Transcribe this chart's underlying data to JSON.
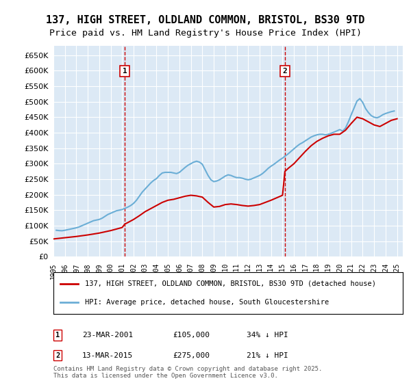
{
  "title": "137, HIGH STREET, OLDLAND COMMON, BRISTOL, BS30 9TD",
  "subtitle": "Price paid vs. HM Land Registry's House Price Index (HPI)",
  "title_fontsize": 11,
  "subtitle_fontsize": 9.5,
  "background_color": "#dce9f5",
  "plot_bg_color": "#dce9f5",
  "fig_bg_color": "#ffffff",
  "ylim": [
    0,
    680000
  ],
  "yticks": [
    0,
    50000,
    100000,
    150000,
    200000,
    250000,
    300000,
    350000,
    400000,
    450000,
    500000,
    550000,
    600000,
    650000
  ],
  "ytick_labels": [
    "£0",
    "£50K",
    "£100K",
    "£150K",
    "£200K",
    "£250K",
    "£300K",
    "£350K",
    "£400K",
    "£450K",
    "£500K",
    "£550K",
    "£600K",
    "£650K"
  ],
  "xlabel_years": [
    "1995",
    "1996",
    "1997",
    "1998",
    "1999",
    "2000",
    "2001",
    "2002",
    "2003",
    "2004",
    "2005",
    "2006",
    "2007",
    "2008",
    "2009",
    "2010",
    "2011",
    "2012",
    "2013",
    "2014",
    "2015",
    "2016",
    "2017",
    "2018",
    "2019",
    "2020",
    "2021",
    "2022",
    "2023",
    "2024",
    "2025"
  ],
  "vline1_x": "2001-03-23",
  "vline2_x": "2015-03-13",
  "vline_color": "#cc0000",
  "marker1_label": "1",
  "marker2_label": "2",
  "sale1_date": "23-MAR-2001",
  "sale1_price": "£105,000",
  "sale1_note": "34% ↓ HPI",
  "sale2_date": "13-MAR-2015",
  "sale2_price": "£275,000",
  "sale2_note": "21% ↓ HPI",
  "legend_line1": "137, HIGH STREET, OLDLAND COMMON, BRISTOL, BS30 9TD (detached house)",
  "legend_line2": "HPI: Average price, detached house, South Gloucestershire",
  "line1_color": "#cc0000",
  "line2_color": "#6baed6",
  "footer": "Contains HM Land Registry data © Crown copyright and database right 2025.\nThis data is licensed under the Open Government Licence v3.0.",
  "hpi_data": {
    "years": [
      1995.25,
      1995.5,
      1995.75,
      1996.0,
      1996.25,
      1996.5,
      1996.75,
      1997.0,
      1997.25,
      1997.5,
      1997.75,
      1998.0,
      1998.25,
      1998.5,
      1998.75,
      1999.0,
      1999.25,
      1999.5,
      1999.75,
      2000.0,
      2000.25,
      2000.5,
      2000.75,
      2001.0,
      2001.25,
      2001.5,
      2001.75,
      2002.0,
      2002.25,
      2002.5,
      2002.75,
      2003.0,
      2003.25,
      2003.5,
      2003.75,
      2004.0,
      2004.25,
      2004.5,
      2004.75,
      2005.0,
      2005.25,
      2005.5,
      2005.75,
      2006.0,
      2006.25,
      2006.5,
      2006.75,
      2007.0,
      2007.25,
      2007.5,
      2007.75,
      2008.0,
      2008.25,
      2008.5,
      2008.75,
      2009.0,
      2009.25,
      2009.5,
      2009.75,
      2010.0,
      2010.25,
      2010.5,
      2010.75,
      2011.0,
      2011.25,
      2011.5,
      2011.75,
      2012.0,
      2012.25,
      2012.5,
      2012.75,
      2013.0,
      2013.25,
      2013.5,
      2013.75,
      2014.0,
      2014.25,
      2014.5,
      2014.75,
      2015.0,
      2015.25,
      2015.5,
      2015.75,
      2016.0,
      2016.25,
      2016.5,
      2016.75,
      2017.0,
      2017.25,
      2017.5,
      2017.75,
      2018.0,
      2018.25,
      2018.5,
      2018.75,
      2019.0,
      2019.25,
      2019.5,
      2019.75,
      2020.0,
      2020.25,
      2020.5,
      2020.75,
      2021.0,
      2021.25,
      2021.5,
      2021.75,
      2022.0,
      2022.25,
      2022.5,
      2022.75,
      2023.0,
      2023.25,
      2023.5,
      2023.75,
      2024.0,
      2024.25,
      2024.5,
      2024.75
    ],
    "values": [
      85000,
      84000,
      83500,
      85000,
      87000,
      89000,
      91000,
      93000,
      96000,
      100000,
      104000,
      108000,
      112000,
      116000,
      118000,
      120000,
      124000,
      130000,
      136000,
      140000,
      144000,
      148000,
      150000,
      152000,
      156000,
      160000,
      165000,
      172000,
      182000,
      195000,
      208000,
      218000,
      228000,
      238000,
      246000,
      252000,
      262000,
      270000,
      272000,
      272000,
      272000,
      270000,
      268000,
      272000,
      280000,
      288000,
      295000,
      300000,
      305000,
      308000,
      305000,
      298000,
      280000,
      262000,
      248000,
      242000,
      244000,
      248000,
      254000,
      260000,
      264000,
      262000,
      258000,
      255000,
      255000,
      253000,
      250000,
      248000,
      250000,
      254000,
      258000,
      262000,
      268000,
      276000,
      285000,
      292000,
      298000,
      305000,
      312000,
      318000,
      325000,
      332000,
      340000,
      348000,
      356000,
      363000,
      368000,
      374000,
      380000,
      386000,
      390000,
      393000,
      395000,
      395000,
      393000,
      395000,
      398000,
      402000,
      406000,
      410000,
      405000,
      415000,
      435000,
      458000,
      480000,
      502000,
      510000,
      498000,
      478000,
      465000,
      455000,
      450000,
      448000,
      452000,
      458000,
      462000,
      465000,
      468000,
      470000
    ]
  },
  "sold_data": {
    "years": [
      1995.0,
      2001.23,
      2015.21
    ],
    "values": [
      57000,
      105000,
      275000
    ]
  },
  "sold_line_segments": {
    "x": [
      1995.0,
      1995.5,
      1996.0,
      1996.5,
      1997.0,
      1997.5,
      1998.0,
      1998.5,
      1999.0,
      1999.5,
      2000.0,
      2000.5,
      2001.0,
      2001.23,
      2001.23,
      2001.5,
      2002.0,
      2002.5,
      2003.0,
      2003.5,
      2004.0,
      2004.5,
      2005.0,
      2005.5,
      2006.0,
      2006.5,
      2007.0,
      2007.5,
      2008.0,
      2008.5,
      2009.0,
      2009.5,
      2010.0,
      2010.5,
      2011.0,
      2011.5,
      2012.0,
      2012.5,
      2013.0,
      2013.5,
      2014.0,
      2014.5,
      2015.0,
      2015.21,
      2015.21,
      2015.5,
      2016.0,
      2016.5,
      2017.0,
      2017.5,
      2018.0,
      2018.5,
      2019.0,
      2019.5,
      2020.0,
      2020.5,
      2021.0,
      2021.5,
      2022.0,
      2022.5,
      2023.0,
      2023.5,
      2024.0,
      2024.5,
      2025.0
    ],
    "y": [
      57000,
      59000,
      61000,
      63000,
      65000,
      67500,
      70000,
      73000,
      76000,
      80000,
      84000,
      89000,
      94000,
      105000,
      105000,
      110000,
      120000,
      132000,
      145000,
      155000,
      165000,
      175000,
      182000,
      185000,
      190000,
      195000,
      198000,
      196000,
      192000,
      175000,
      160000,
      162000,
      168000,
      170000,
      168000,
      165000,
      163000,
      165000,
      168000,
      175000,
      182000,
      190000,
      198000,
      275000,
      275000,
      285000,
      300000,
      320000,
      340000,
      358000,
      372000,
      382000,
      390000,
      395000,
      395000,
      408000,
      430000,
      450000,
      445000,
      435000,
      425000,
      420000,
      430000,
      440000,
      445000
    ]
  }
}
